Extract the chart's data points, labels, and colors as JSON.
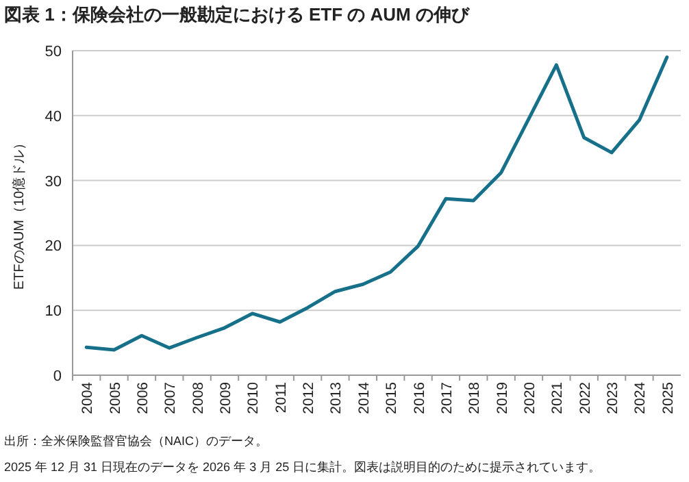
{
  "chart_data": {
    "type": "line",
    "title": "図表 1：保険会社の一般勘定における ETF の AUM の伸び",
    "ylabel": "ETFのAUM（10億ドル）",
    "categories": [
      "2004",
      "2005",
      "2006",
      "2007",
      "2008",
      "2009",
      "2010",
      "2011",
      "2012",
      "2013",
      "2014",
      "2015",
      "2016",
      "2017",
      "2018",
      "2019",
      "2020",
      "2021",
      "2022",
      "2023",
      "2024",
      "2025"
    ],
    "series": [
      {
        "color": "#16708a",
        "values": [
          4.3,
          3.9,
          6.1,
          4.2,
          5.8,
          7.3,
          9.5,
          8.2,
          10.4,
          12.9,
          14.0,
          15.9,
          19.9,
          27.2,
          26.9,
          31.2,
          39.5,
          47.8,
          36.6,
          34.3,
          39.3,
          49.0
        ]
      }
    ],
    "ylim": [
      0,
      50
    ],
    "yticks": [
      0,
      10,
      20,
      30,
      40,
      50
    ],
    "grid": "y",
    "marker": "none",
    "line_style": "solid",
    "annotations": [
      "出所：全米保険監督官協会（NAIC）のデータ。",
      "2025 年 12 月 31 日現在のデータを 2026 年 3 月 25 日に集計。図表は説明目的のために提示されています。"
    ]
  }
}
